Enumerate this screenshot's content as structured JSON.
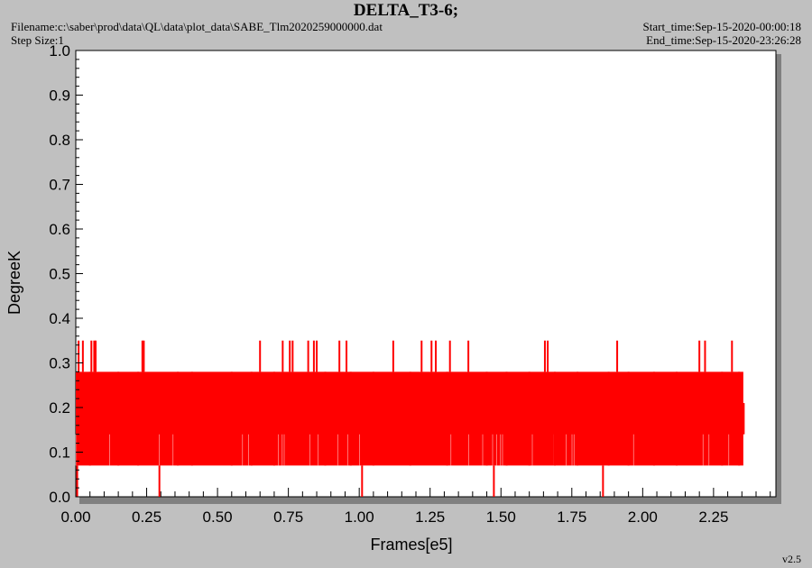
{
  "header": {
    "title": "DELTA_T3-6;",
    "filename": "Filename:c:\\saber\\prod\\data\\QL\\data\\plot_data\\SABE_Tlm2020259000000.dat",
    "step_size": "Step Size:1",
    "start_time": "Start_time:Sep-15-2020-00:00:18",
    "end_time": "End_time:Sep-15-2020-23:26:28"
  },
  "footer": {
    "version": "v2.5"
  },
  "colors": {
    "series": "#ff0000",
    "background": "#c0c0c0",
    "plot": "#ffffff",
    "shadow": "#808080"
  },
  "chart_data": {
    "type": "line",
    "title": "DELTA_T3-6;",
    "xlabel": "Frames[e5]",
    "ylabel": "DegreeK",
    "xlim": [
      0.0,
      2.47
    ],
    "ylim": [
      0.0,
      1.0
    ],
    "x_ticks": [
      "0.00",
      "0.25",
      "0.50",
      "0.75",
      "1.00",
      "1.25",
      "1.50",
      "1.75",
      "2.00",
      "2.25"
    ],
    "y_ticks": [
      "0.0",
      "0.1",
      "0.2",
      "0.3",
      "0.4",
      "0.5",
      "0.6",
      "0.7",
      "0.8",
      "0.9",
      "1.0"
    ],
    "grid": false,
    "series": [
      {
        "x_range": [
          0.0,
          2.355
        ],
        "levels": [
          0.0,
          0.07,
          0.14,
          0.21,
          0.28,
          0.35
        ],
        "main_band": [
          0.07,
          0.28
        ],
        "core_band": [
          0.14,
          0.28
        ],
        "spikes_to_0_35": [
          0.01,
          0.025,
          0.055,
          0.065,
          0.07,
          0.235,
          0.24,
          0.65,
          0.73,
          0.755,
          0.765,
          0.82,
          0.84,
          0.85,
          0.93,
          0.955,
          1.12,
          1.22,
          1.255,
          1.27,
          1.32,
          1.385,
          1.655,
          1.665,
          1.91,
          2.2,
          2.22,
          2.315
        ],
        "spikes_to_0_0": [
          0.005,
          0.295,
          1.01,
          1.475,
          1.86
        ],
        "dips_to_0_07": [
          0.05,
          0.15,
          0.22,
          0.36,
          0.41,
          0.55,
          0.62,
          0.7,
          0.88,
          0.97,
          1.05,
          1.18,
          1.31,
          1.45,
          1.52,
          1.6,
          1.69,
          1.77,
          1.88,
          1.95,
          2.04,
          2.12,
          2.28,
          2.34
        ]
      }
    ]
  }
}
